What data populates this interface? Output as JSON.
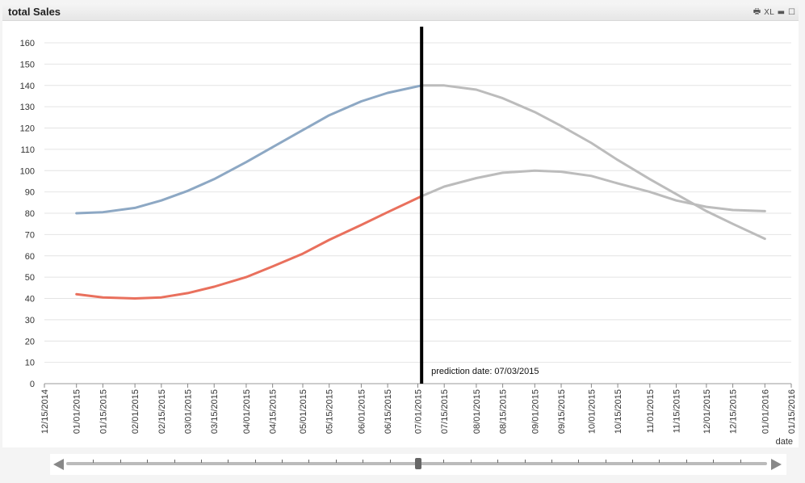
{
  "window": {
    "title": "total Sales",
    "icons": [
      {
        "name": "print-icon",
        "glyph": "🖶"
      },
      {
        "name": "excel-export-icon",
        "glyph": "XL"
      },
      {
        "name": "minimize-icon",
        "glyph": "▬"
      },
      {
        "name": "maximize-icon",
        "glyph": "☐"
      }
    ]
  },
  "chart_data": {
    "type": "line",
    "title": "total Sales",
    "xlabel": "date",
    "ylabel": "",
    "ylim": [
      0,
      160
    ],
    "yticks": [
      0,
      10,
      20,
      30,
      40,
      50,
      60,
      70,
      80,
      90,
      100,
      110,
      120,
      130,
      140,
      150,
      160
    ],
    "xtick_labels": [
      "12/15/2014",
      "01/01/2015",
      "01/15/2015",
      "02/01/2015",
      "02/15/2015",
      "03/01/2015",
      "03/15/2015",
      "04/01/2015",
      "04/15/2015",
      "05/01/2015",
      "05/15/2015",
      "06/01/2015",
      "06/15/2015",
      "07/01/2015",
      "07/15/2015",
      "08/01/2015",
      "08/15/2015",
      "09/01/2015",
      "09/15/2015",
      "10/01/2015",
      "10/15/2015",
      "11/01/2015",
      "11/15/2015",
      "12/01/2015",
      "12/15/2015",
      "01/01/2016",
      "01/15/2016"
    ],
    "xlim": [
      "2014-12-15",
      "2016-01-15"
    ],
    "grid": true,
    "prediction_line": {
      "date": "2015-07-03",
      "label": "prediction date: 07/03/2015",
      "color": "#000000"
    },
    "series": [
      {
        "color": "#8da8c4",
        "forecast_color": "#bcbcbc",
        "points": [
          [
            "2015-01-01",
            80
          ],
          [
            "2015-01-15",
            80.5
          ],
          [
            "2015-02-01",
            82.5
          ],
          [
            "2015-02-15",
            86
          ],
          [
            "2015-03-01",
            90.5
          ],
          [
            "2015-03-15",
            96
          ],
          [
            "2015-04-01",
            104
          ],
          [
            "2015-04-15",
            111
          ],
          [
            "2015-05-01",
            119
          ],
          [
            "2015-05-15",
            126
          ],
          [
            "2015-06-01",
            132.5
          ],
          [
            "2015-06-15",
            136.5
          ],
          [
            "2015-07-03",
            140
          ],
          [
            "2015-07-15",
            140
          ],
          [
            "2015-08-01",
            138
          ],
          [
            "2015-08-15",
            134
          ],
          [
            "2015-09-01",
            127.5
          ],
          [
            "2015-09-15",
            121
          ],
          [
            "2015-10-01",
            113
          ],
          [
            "2015-10-15",
            105
          ],
          [
            "2015-11-01",
            96
          ],
          [
            "2015-11-15",
            89
          ],
          [
            "2015-12-01",
            81
          ],
          [
            "2015-12-15",
            75
          ],
          [
            "2016-01-01",
            68
          ]
        ]
      },
      {
        "color": "#e9705d",
        "forecast_color": "#bcbcbc",
        "points": [
          [
            "2015-01-01",
            42
          ],
          [
            "2015-01-15",
            40.5
          ],
          [
            "2015-02-01",
            40
          ],
          [
            "2015-02-15",
            40.5
          ],
          [
            "2015-03-01",
            42.5
          ],
          [
            "2015-03-15",
            45.5
          ],
          [
            "2015-04-01",
            50
          ],
          [
            "2015-04-15",
            55
          ],
          [
            "2015-05-01",
            61
          ],
          [
            "2015-05-15",
            67.5
          ],
          [
            "2015-06-01",
            74.5
          ],
          [
            "2015-06-15",
            80.5
          ],
          [
            "2015-07-03",
            88
          ],
          [
            "2015-07-15",
            92.5
          ],
          [
            "2015-08-01",
            96.5
          ],
          [
            "2015-08-15",
            99
          ],
          [
            "2015-09-01",
            100
          ],
          [
            "2015-09-15",
            99.5
          ],
          [
            "2015-10-01",
            97.5
          ],
          [
            "2015-10-15",
            94
          ],
          [
            "2015-11-01",
            90
          ],
          [
            "2015-11-15",
            86
          ],
          [
            "2015-12-01",
            83
          ],
          [
            "2015-12-15",
            81.5
          ],
          [
            "2016-01-01",
            81
          ]
        ]
      }
    ]
  }
}
